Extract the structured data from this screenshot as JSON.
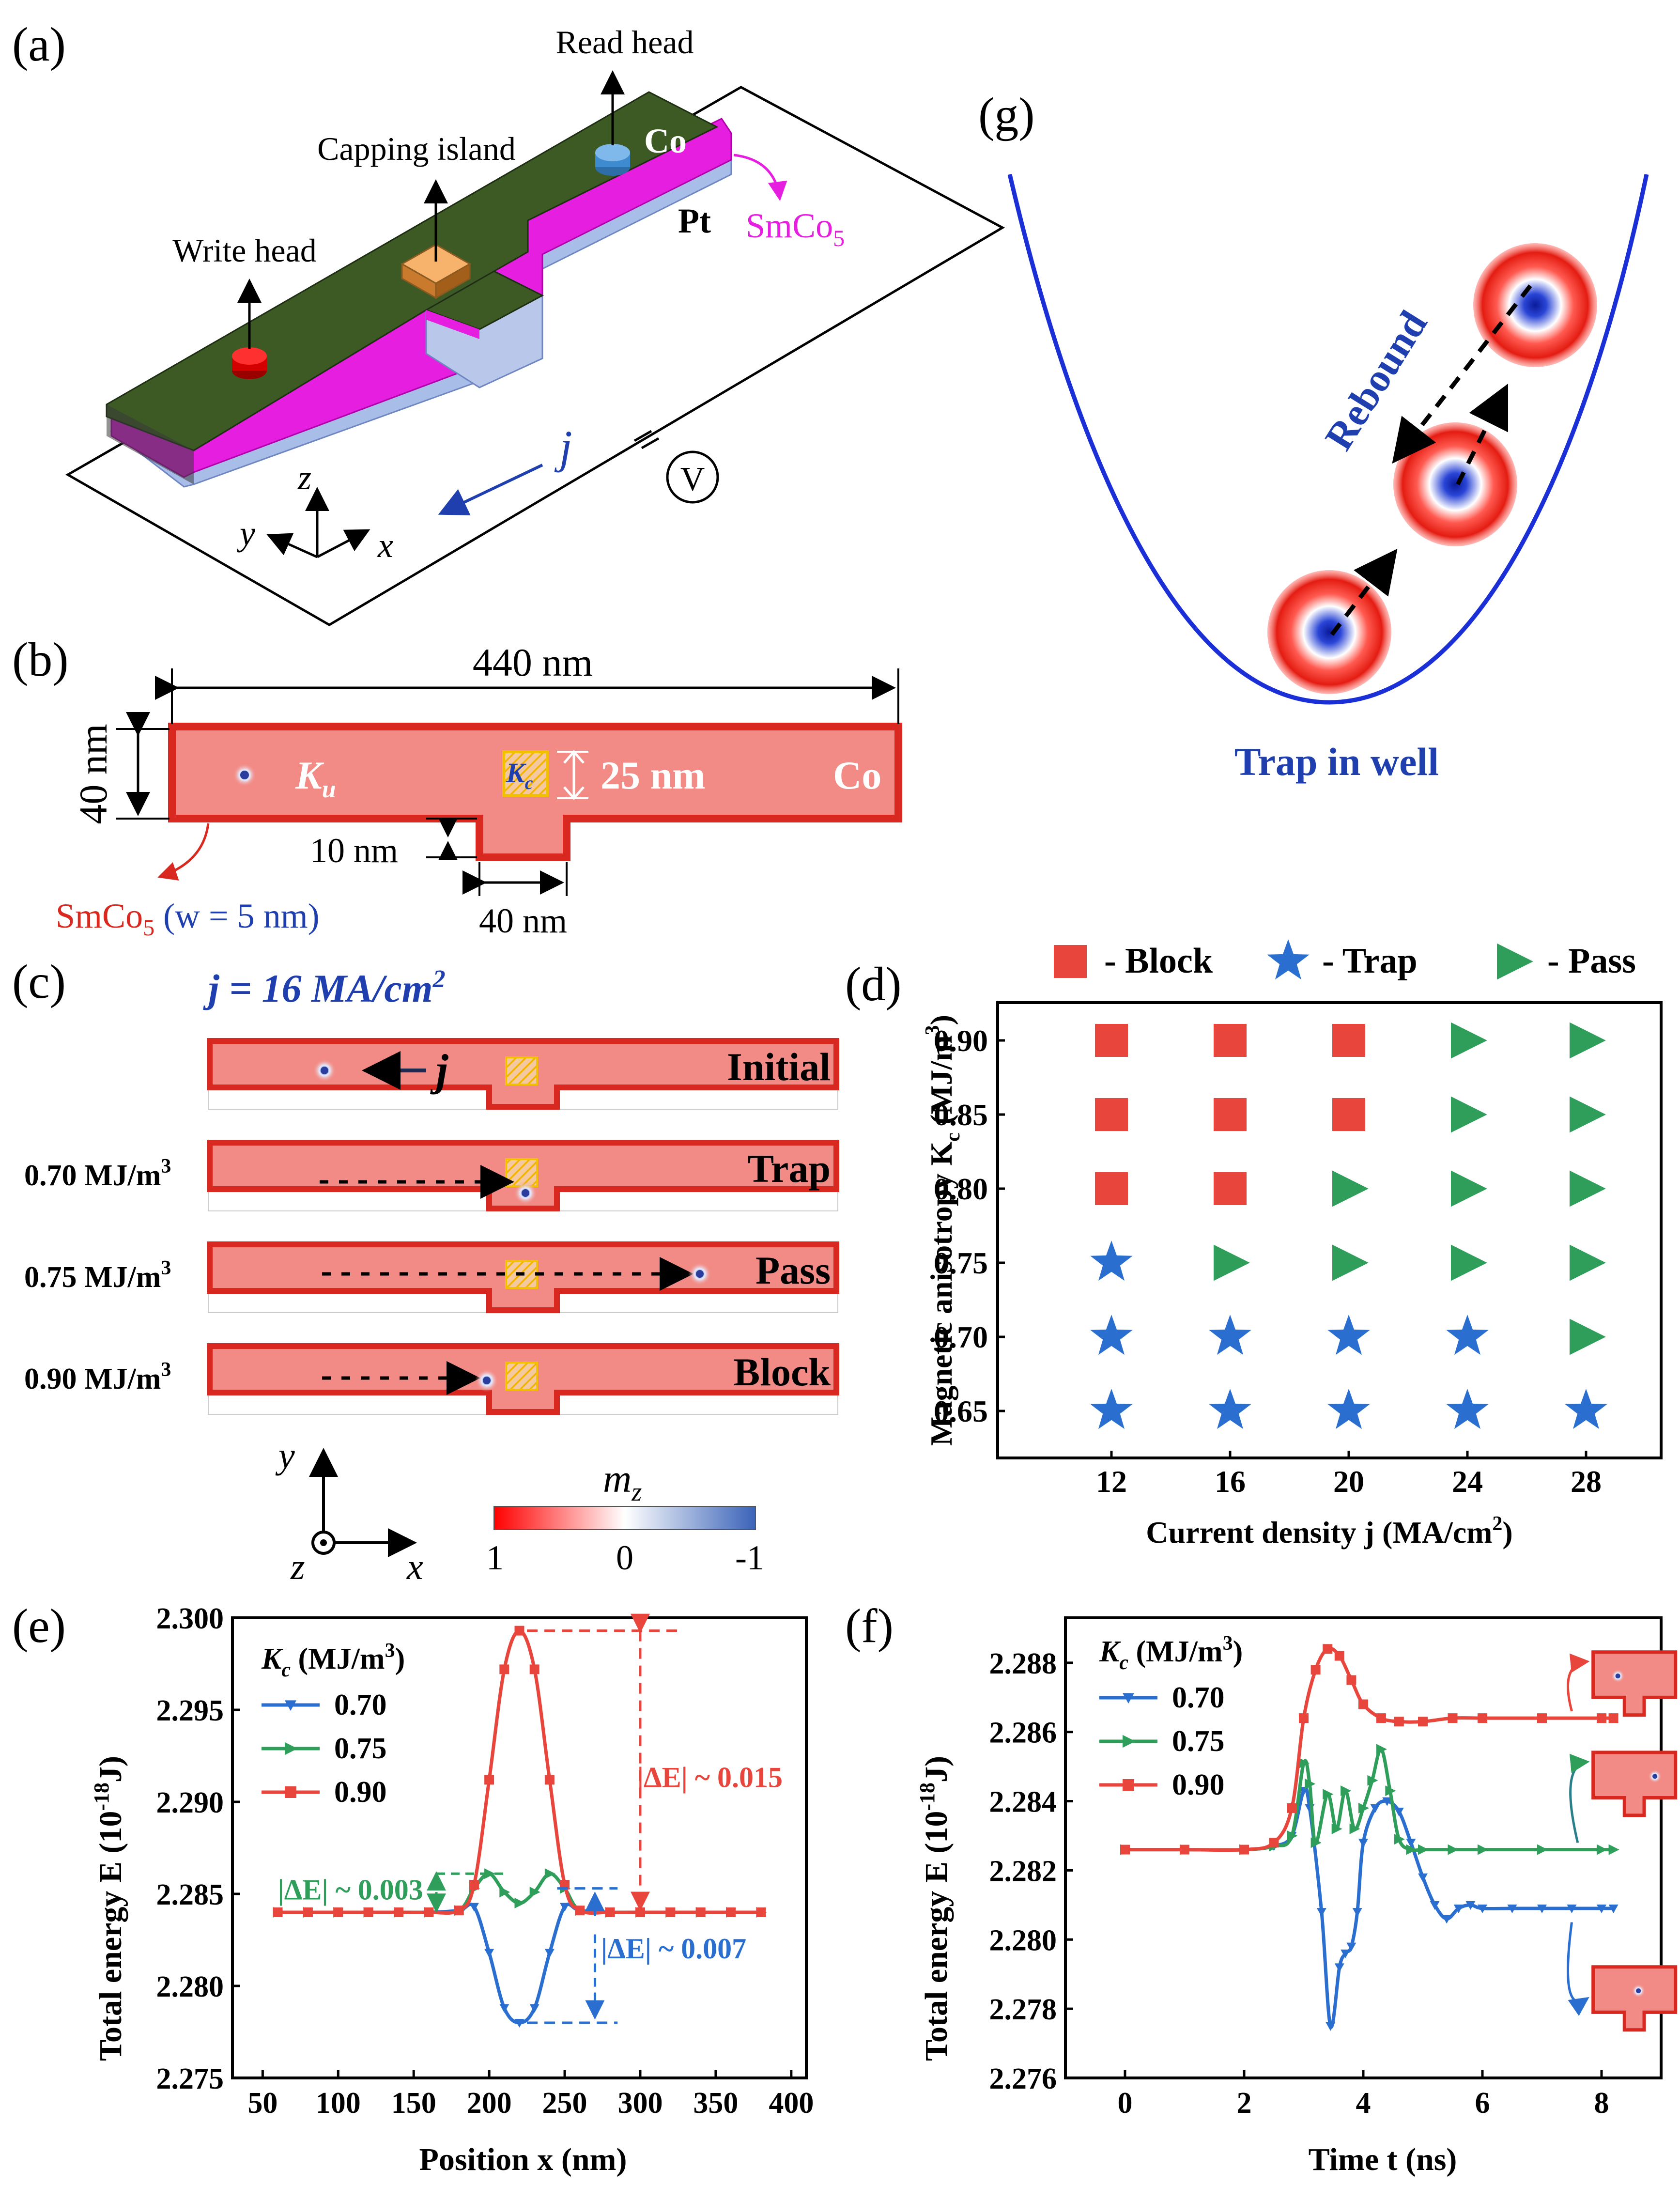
{
  "colors": {
    "red": "#e8453c",
    "green": "#2e9e5a",
    "blue": "#2a6fcf",
    "darkblue": "#1f3fae",
    "magenta": "#e61ee0",
    "co_fill": "#f28b85",
    "co_edge": "#d8281f",
    "yellow": "#f2c200",
    "olive": "#3d5a25"
  },
  "panels": {
    "a": {
      "label": "(a)",
      "read_head": "Read head",
      "capping_island": "Capping island",
      "write_head": "Write head",
      "co": "Co",
      "pt": "Pt",
      "smco5": "SmCo",
      "smco5_sub": "5",
      "j": "j",
      "v": "V",
      "x": "x",
      "y": "y",
      "z": "z"
    },
    "b": {
      "label": "(b)",
      "length": "440 nm",
      "width": "40 nm",
      "ku": "K",
      "ku_sub": "u",
      "kc": "K",
      "kc_sub": "c",
      "kc_dim": "25 nm",
      "co": "Co",
      "notch_depth": "10 nm",
      "notch_width": "40 nm",
      "smco": "SmCo",
      "smco_sub": "5",
      "w_label": " (w = 5 nm)"
    },
    "c": {
      "label": "(c)",
      "current": "j = 16 MA/cm",
      "current_sup": "2",
      "rows": [
        {
          "left": "",
          "right": "Initial"
        },
        {
          "left": "0.70 MJ/m",
          "right": "Trap"
        },
        {
          "left": "0.75 MJ/m",
          "right": "Pass"
        },
        {
          "left": "0.90 MJ/m",
          "right": "Block"
        }
      ],
      "sup3": "3",
      "j": "j",
      "y": "y",
      "x": "x",
      "z": "z",
      "mz": "m",
      "mz_sub": "z",
      "cb_ticks": [
        "1",
        "0",
        "-1"
      ]
    },
    "g": {
      "label": "(g)",
      "rebound": "Rebound",
      "trap": "Trap in well"
    }
  },
  "chart_data": [
    {
      "id": "d",
      "label": "(d)",
      "type": "scatter",
      "title": "",
      "xlabel": "Current density j (MA/cm",
      "xlabel_sup": "2",
      "xlabel_end": ")",
      "ylabel": "Magnetic anisotropy K",
      "ylabel_sub": "c",
      "ylabel_end": " (MJ/m",
      "ylabel_sup": "3",
      "ylabel_close": ")",
      "categories_x": [
        "12",
        "16",
        "20",
        "24",
        "28"
      ],
      "categories_y": [
        "0.90",
        "0.85",
        "0.80",
        "0.75",
        "0.70",
        "0.65"
      ],
      "legend": [
        {
          "name": "- Block",
          "marker": "square"
        },
        {
          "name": "- Trap",
          "marker": "star"
        },
        {
          "name": "- Pass",
          "marker": "triangle"
        }
      ],
      "grid": [
        [
          "Block",
          "Block",
          "Block",
          "Pass",
          "Pass"
        ],
        [
          "Block",
          "Block",
          "Block",
          "Pass",
          "Pass"
        ],
        [
          "Block",
          "Block",
          "Pass",
          "Pass",
          "Pass"
        ],
        [
          "Trap",
          "Pass",
          "Pass",
          "Pass",
          "Pass"
        ],
        [
          "Trap",
          "Trap",
          "Trap",
          "Trap",
          "Pass"
        ],
        [
          "Trap",
          "Trap",
          "Trap",
          "Trap",
          "Trap"
        ]
      ]
    },
    {
      "id": "e",
      "label": "(e)",
      "type": "line",
      "xlabel": "Position x (nm)",
      "ylabel": "Total energy E (10",
      "ylabel_sup": "-18",
      "ylabel_end": "J)",
      "xlim": [
        30,
        410
      ],
      "ylim": [
        2.275,
        2.3
      ],
      "xticks": [
        50,
        100,
        150,
        200,
        250,
        300,
        350,
        400
      ],
      "yticks": [
        2.275,
        2.28,
        2.285,
        2.29,
        2.295,
        2.3
      ],
      "ytick_labels": [
        "2.275",
        "2.280",
        "2.285",
        "2.290",
        "2.295",
        "2.300"
      ],
      "legend_title": "K",
      "legend_title_sub": "c",
      "legend_title_end": " (MJ/m",
      "legend_title_sup": "3",
      "legend_title_close": ")",
      "series": [
        {
          "name": "0.70",
          "color": "#2a6fcf",
          "marker": "tri-down",
          "x": [
            60,
            80,
            100,
            120,
            140,
            160,
            180,
            190,
            200,
            210,
            220,
            230,
            240,
            250,
            260,
            280,
            300,
            320,
            340,
            360,
            380
          ],
          "y": [
            2.284,
            2.284,
            2.284,
            2.284,
            2.284,
            2.284,
            2.2841,
            2.2843,
            2.2818,
            2.2788,
            2.278,
            2.2788,
            2.2818,
            2.2843,
            2.2841,
            2.284,
            2.284,
            2.284,
            2.284,
            2.284,
            2.284
          ]
        },
        {
          "name": "0.75",
          "color": "#2e9e5a",
          "marker": "tri-right",
          "x": [
            60,
            80,
            100,
            120,
            140,
            160,
            180,
            190,
            200,
            210,
            220,
            230,
            240,
            250,
            260,
            280,
            300,
            320,
            340,
            360,
            380
          ],
          "y": [
            2.284,
            2.284,
            2.284,
            2.284,
            2.284,
            2.284,
            2.2841,
            2.2853,
            2.2861,
            2.2851,
            2.2845,
            2.2851,
            2.2861,
            2.2853,
            2.2841,
            2.284,
            2.284,
            2.284,
            2.284,
            2.284,
            2.284
          ]
        },
        {
          "name": "0.90",
          "color": "#e8453c",
          "marker": "square",
          "x": [
            60,
            80,
            100,
            120,
            140,
            160,
            180,
            190,
            200,
            210,
            220,
            230,
            240,
            250,
            260,
            280,
            300,
            320,
            340,
            360,
            380
          ],
          "y": [
            2.284,
            2.284,
            2.284,
            2.284,
            2.284,
            2.284,
            2.2841,
            2.2855,
            2.2912,
            2.2972,
            2.2993,
            2.2972,
            2.2912,
            2.2855,
            2.2841,
            2.284,
            2.284,
            2.284,
            2.284,
            2.284,
            2.284
          ]
        }
      ],
      "annotations": [
        {
          "text": "|ΔE| ~ 0.015",
          "color": "#e8453c"
        },
        {
          "text": "|ΔE| ~ 0.003",
          "color": "#2e9e5a"
        },
        {
          "text": "|ΔE| ~ 0.007",
          "color": "#2a6fcf"
        }
      ]
    },
    {
      "id": "f",
      "label": "(f)",
      "type": "line",
      "xlabel": "Time t (ns)",
      "ylabel": "Total energy E (10",
      "ylabel_sup": "-18",
      "ylabel_end": "J)",
      "xlim": [
        -1,
        9
      ],
      "ylim": [
        2.276,
        2.2893
      ],
      "xticks": [
        0,
        2,
        4,
        6,
        8
      ],
      "yticks": [
        2.276,
        2.278,
        2.28,
        2.282,
        2.284,
        2.286,
        2.288
      ],
      "ytick_labels": [
        "2.276",
        "2.278",
        "2.280",
        "2.282",
        "2.284",
        "2.286",
        "2.288"
      ],
      "legend_title": "K",
      "legend_title_sub": "c",
      "legend_title_end": " (MJ/m",
      "legend_title_sup": "3",
      "legend_title_close": ")",
      "series": [
        {
          "name": "0.70",
          "color": "#2a6fcf",
          "marker": "tri-down",
          "x": [
            0,
            1,
            2,
            2.5,
            2.8,
            3.0,
            3.1,
            3.3,
            3.45,
            3.6,
            3.7,
            3.8,
            3.9,
            4.0,
            4.2,
            4.4,
            4.6,
            4.8,
            5.0,
            5.2,
            5.4,
            5.6,
            5.8,
            6.0,
            6.5,
            7.0,
            7.5,
            8.0,
            8.2
          ],
          "y": [
            2.2826,
            2.2826,
            2.2826,
            2.2827,
            2.283,
            2.2843,
            2.2838,
            2.2808,
            2.2775,
            2.2792,
            2.2796,
            2.2798,
            2.2808,
            2.2828,
            2.2838,
            2.284,
            2.2837,
            2.2828,
            2.2818,
            2.281,
            2.2806,
            2.2809,
            2.281,
            2.2809,
            2.2809,
            2.2809,
            2.2809,
            2.2809,
            2.2809
          ]
        },
        {
          "name": "0.75",
          "color": "#2e9e5a",
          "marker": "tri-right",
          "x": [
            0,
            1,
            2,
            2.5,
            2.8,
            3.0,
            3.1,
            3.2,
            3.4,
            3.55,
            3.7,
            3.85,
            4.0,
            4.15,
            4.3,
            4.45,
            4.6,
            4.8,
            5.0,
            5.5,
            6.0,
            7.0,
            8.0,
            8.2
          ],
          "y": [
            2.2826,
            2.2826,
            2.2826,
            2.2827,
            2.283,
            2.2851,
            2.2845,
            2.2828,
            2.2842,
            2.2832,
            2.2843,
            2.2832,
            2.2838,
            2.2846,
            2.2855,
            2.2843,
            2.2829,
            2.2826,
            2.2826,
            2.2826,
            2.2826,
            2.2826,
            2.2826,
            2.2826
          ]
        },
        {
          "name": "0.90",
          "color": "#e8453c",
          "marker": "square",
          "x": [
            0,
            1,
            2,
            2.5,
            2.8,
            3.0,
            3.2,
            3.4,
            3.6,
            3.8,
            4.0,
            4.3,
            4.6,
            5.0,
            5.5,
            6.0,
            7.0,
            8.0,
            8.2
          ],
          "y": [
            2.2826,
            2.2826,
            2.2826,
            2.2828,
            2.2838,
            2.2864,
            2.2878,
            2.2884,
            2.2882,
            2.2875,
            2.2868,
            2.2864,
            2.2863,
            2.2863,
            2.2864,
            2.2864,
            2.2864,
            2.2864,
            2.2864
          ]
        }
      ]
    }
  ]
}
